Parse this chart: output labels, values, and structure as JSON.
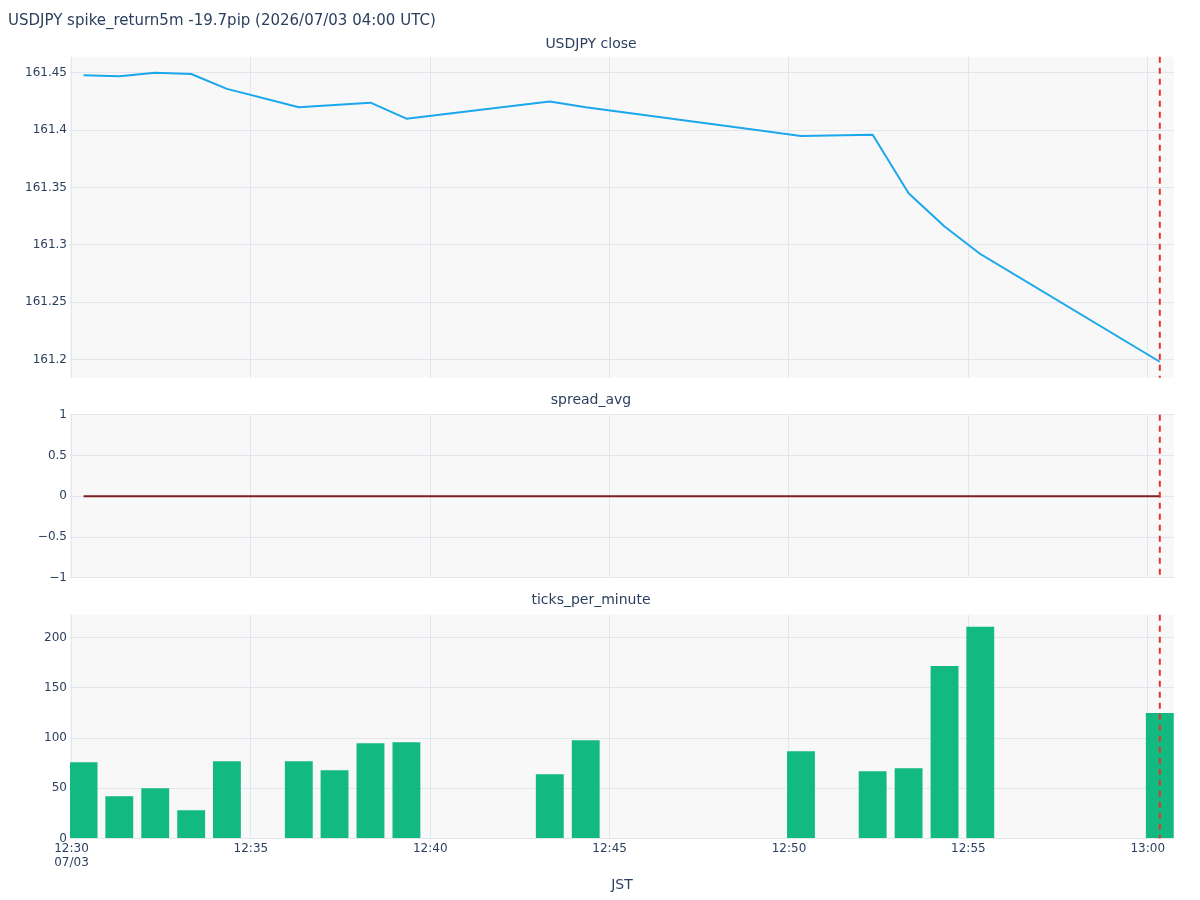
{
  "chart_data": [
    {
      "type": "line",
      "title": "USDJPY spike_return5m -19.7pip (2026/07/03 04:00 UTC)",
      "subtitle": "USDJPY close",
      "x": [
        12.5056,
        12.5222,
        12.5389,
        12.5556,
        12.5722,
        12.6056,
        12.6222,
        12.6389,
        12.6556,
        12.7222,
        12.7389,
        12.8389,
        12.8722,
        12.8889,
        12.9056,
        12.9222,
        13.0056
      ],
      "series": [
        {
          "color": "#1aa7ec",
          "values": [
            161.448,
            161.447,
            161.45,
            161.449,
            161.436,
            161.42,
            161.422,
            161.424,
            161.41,
            161.425,
            161.42,
            161.395,
            161.396,
            161.345,
            161.316,
            161.292,
            161.198
          ]
        }
      ],
      "xlim": [
        12.4993,
        13.0122
      ],
      "ylim": [
        161.184,
        161.464
      ],
      "yticks": [
        161.2,
        161.25,
        161.3,
        161.35,
        161.4,
        161.45
      ],
      "xticks": [
        {
          "value": 12.5,
          "label": null
        },
        {
          "value": 12.58333,
          "label": null
        },
        {
          "value": 12.66667,
          "label": null
        },
        {
          "value": 12.75,
          "label": null
        },
        {
          "value": 12.83333,
          "label": null
        },
        {
          "value": 12.91667,
          "label": null
        },
        {
          "value": 13,
          "label": null
        }
      ],
      "tick_labels": "y",
      "grid": true,
      "legend": false,
      "marker": "none",
      "ref_lines": [
        {
          "axis": "x",
          "value": 13.0056,
          "color": "#e8312f",
          "line_style": "dashed"
        }
      ]
    },
    {
      "type": "line",
      "title": "spread_avg",
      "x": [
        12.5056,
        12.5222,
        12.5389,
        12.5556,
        12.5722,
        12.6056,
        12.6222,
        12.6389,
        12.6556,
        12.7222,
        12.7389,
        12.8389,
        12.8722,
        12.8889,
        12.9056,
        12.9222,
        13.0056
      ],
      "series": [
        {
          "color": "#7f1f1f",
          "values": [
            0,
            0,
            0,
            0,
            0,
            0,
            0,
            0,
            0,
            0,
            0,
            0,
            0,
            0,
            0,
            0,
            0
          ]
        }
      ],
      "xlim": [
        12.4993,
        13.0122
      ],
      "ylim": [
        -1,
        1
      ],
      "yticks": [
        {
          "value": -1,
          "label": "−1"
        },
        {
          "value": -0.5,
          "label": "−0.5"
        },
        0,
        0.5,
        1
      ],
      "xticks": [
        {
          "value": 12.5,
          "label": null
        },
        {
          "value": 12.58333,
          "label": null
        },
        {
          "value": 12.66667,
          "label": null
        },
        {
          "value": 12.75,
          "label": null
        },
        {
          "value": 12.83333,
          "label": null
        },
        {
          "value": 12.91667,
          "label": null
        },
        {
          "value": 13,
          "label": null
        }
      ],
      "tick_labels": "y",
      "grid": true,
      "legend": false,
      "marker": "none",
      "ref_lines": [
        {
          "axis": "x",
          "value": 13.0056,
          "color": "#e8312f",
          "line_style": "dashed"
        }
      ]
    },
    {
      "type": "bar",
      "title": "ticks_per_minute",
      "xlabel": "JST",
      "x": [
        12.5056,
        12.5222,
        12.5389,
        12.5556,
        12.5722,
        12.6056,
        12.6222,
        12.6389,
        12.6556,
        12.7222,
        12.7389,
        12.8389,
        12.8722,
        12.8889,
        12.9056,
        12.9222,
        13.0056
      ],
      "series": [
        {
          "color": "#12b981",
          "values": [
            76,
            42,
            50,
            28,
            77,
            77,
            68,
            95,
            96,
            64,
            98,
            87,
            67,
            70,
            172,
            211,
            125
          ]
        }
      ],
      "xlim": [
        12.4993,
        13.0122
      ],
      "ylim": [
        0,
        223
      ],
      "yticks": [
        0,
        50,
        100,
        150,
        200
      ],
      "xticks": [
        {
          "value": 12.5,
          "label": "12:30\n07/03"
        },
        {
          "value": 12.58333,
          "label": "12:35"
        },
        {
          "value": 12.66667,
          "label": "12:40"
        },
        {
          "value": 12.75,
          "label": "12:45"
        },
        {
          "value": 12.83333,
          "label": "12:50"
        },
        {
          "value": 12.91667,
          "label": "12:55"
        },
        {
          "value": 13,
          "label": "13:00"
        }
      ],
      "grid": true,
      "legend": false,
      "ref_lines": [
        {
          "axis": "x",
          "value": 13.0056,
          "color": "#e8312f",
          "line_style": "dashed"
        }
      ]
    }
  ]
}
